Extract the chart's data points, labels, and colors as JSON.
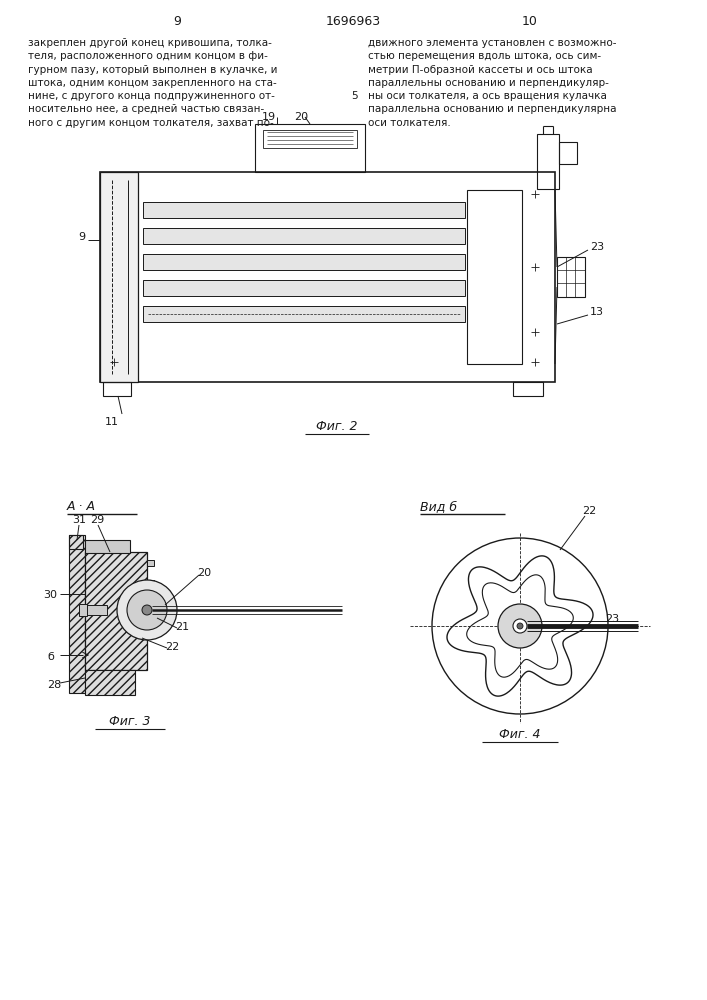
{
  "page_numbers": [
    "9",
    "10"
  ],
  "patent_number": "1696963",
  "background": "#ffffff",
  "line_color": "#1a1a1a",
  "text_color": "#1a1a1a",
  "left_text": "закреплен другой конец кривошипа, толка-\nтеля, расположенного одним концом в фи-\nгурном пазу, который выполнен в кулачке, и\nштока, одним концом закрепленного на ста-\nнине, с другого конца подпружиненного от-\nносительно нее, а средней частью связан-\nного с другим концом толкателя, захват по-",
  "right_text": "движного элемента установлен с возможно-\nстью перемещения вдоль штока, ось сим-\nметрии П-образной кассеты и ось штока\nпараллельны основанию и перпендикуляр-\nны оси толкателя, а ось вращения кулачка\nпараллельна основанию и перпендикулярна\nоси толкателя.",
  "line_number": "5",
  "fig2_label": "Фиг. 2",
  "fig3_label": "Фиг. 3",
  "fig4_label": "Фиг. 4",
  "section_label_AA": "А · А",
  "section_label_B": "Вид б"
}
